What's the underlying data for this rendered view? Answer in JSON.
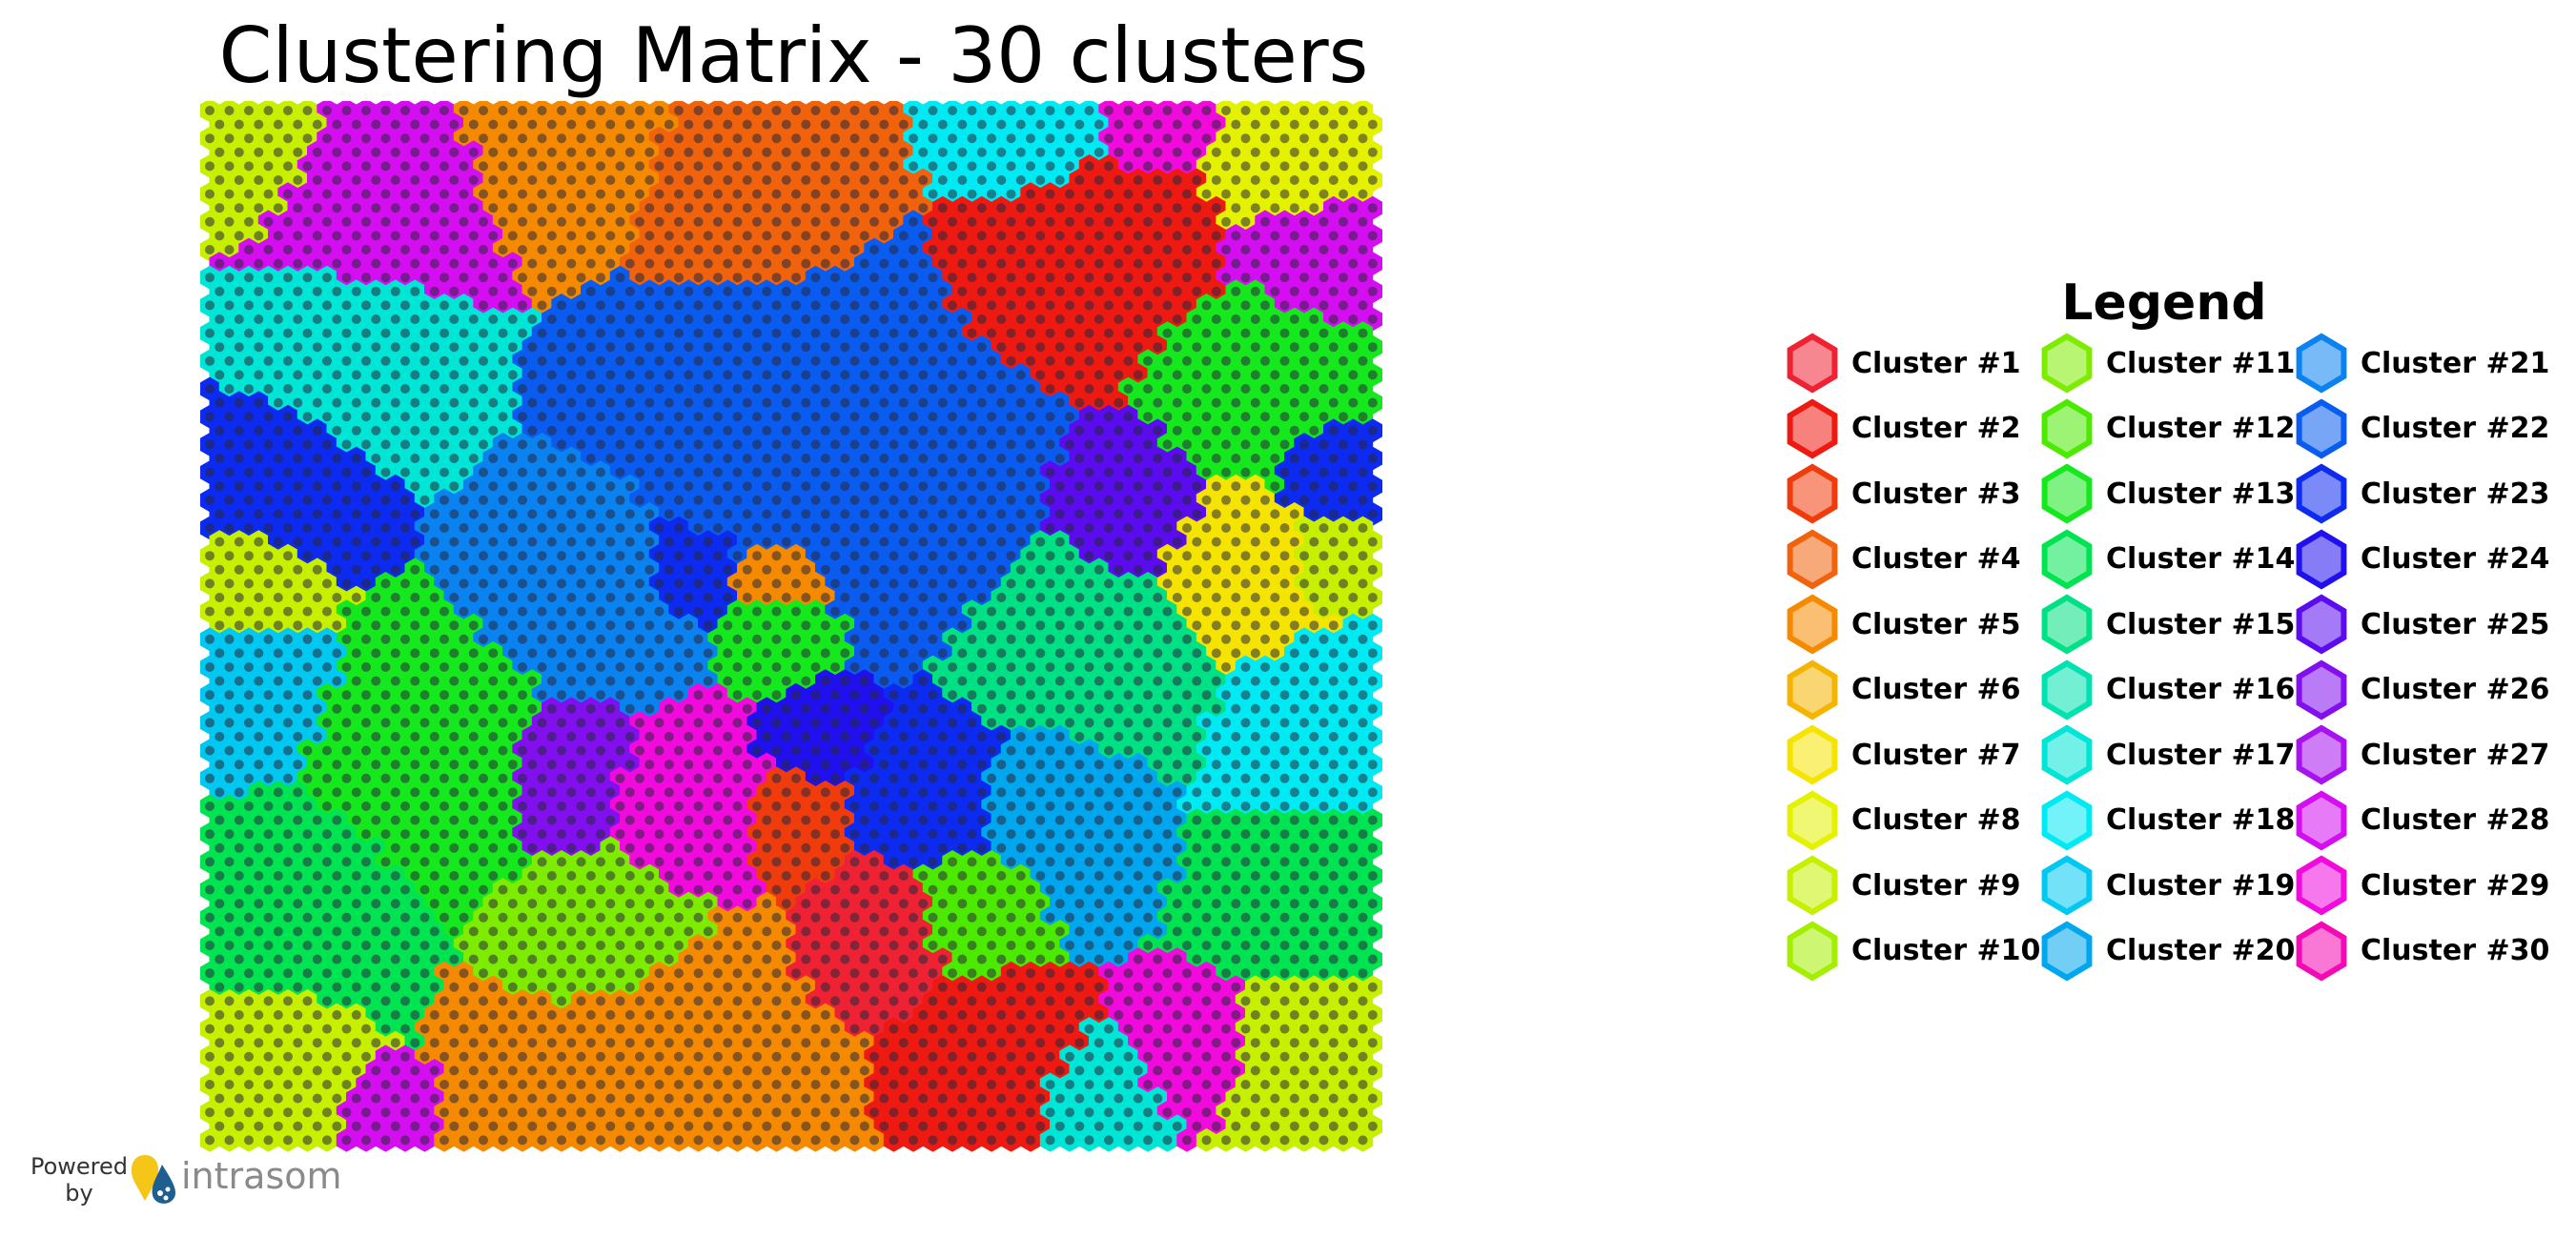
{
  "page": {
    "title": "Clustering Matrix - 30 clusters",
    "legend_title": "Legend",
    "powered_by": "Powered by",
    "brand": "intrasom"
  },
  "icons": {
    "logo": "intrasom-logo-icon",
    "legend_marker": "hexagon-icon"
  },
  "chart_data": {
    "type": "heatmap",
    "grid": "hexagonal",
    "title": "Clustering Matrix - 30 clusters",
    "cluster_count": 30,
    "clusters": [
      {
        "id": 1,
        "name": "Cluster #1",
        "color": "#ee2233"
      },
      {
        "id": 2,
        "name": "Cluster #2",
        "color": "#ee1a12"
      },
      {
        "id": 3,
        "name": "Cluster #3",
        "color": "#f03c0c"
      },
      {
        "id": 4,
        "name": "Cluster #4",
        "color": "#f0620c"
      },
      {
        "id": 5,
        "name": "Cluster #5",
        "color": "#f58a00"
      },
      {
        "id": 6,
        "name": "Cluster #6",
        "color": "#f5b400"
      },
      {
        "id": 7,
        "name": "Cluster #7",
        "color": "#f5e400"
      },
      {
        "id": 8,
        "name": "Cluster #8",
        "color": "#e4f200"
      },
      {
        "id": 9,
        "name": "Cluster #9",
        "color": "#c6f000"
      },
      {
        "id": 10,
        "name": "Cluster #10",
        "color": "#a4ee00"
      },
      {
        "id": 11,
        "name": "Cluster #11",
        "color": "#7eec00"
      },
      {
        "id": 12,
        "name": "Cluster #12",
        "color": "#4cea00"
      },
      {
        "id": 13,
        "name": "Cluster #13",
        "color": "#16e81e"
      },
      {
        "id": 14,
        "name": "Cluster #14",
        "color": "#00e452"
      },
      {
        "id": 15,
        "name": "Cluster #15",
        "color": "#00e084"
      },
      {
        "id": 16,
        "name": "Cluster #16",
        "color": "#00e2b0"
      },
      {
        "id": 17,
        "name": "Cluster #17",
        "color": "#00e6d6"
      },
      {
        "id": 18,
        "name": "Cluster #18",
        "color": "#00eaf4"
      },
      {
        "id": 19,
        "name": "Cluster #19",
        "color": "#00c8f0"
      },
      {
        "id": 20,
        "name": "Cluster #20",
        "color": "#00a6ee"
      },
      {
        "id": 21,
        "name": "Cluster #21",
        "color": "#0a82f0"
      },
      {
        "id": 22,
        "name": "Cluster #22",
        "color": "#0a5cf0"
      },
      {
        "id": 23,
        "name": "Cluster #23",
        "color": "#0c2af0"
      },
      {
        "id": 24,
        "name": "Cluster #24",
        "color": "#2010ee"
      },
      {
        "id": 25,
        "name": "Cluster #25",
        "color": "#5a0cee"
      },
      {
        "id": 26,
        "name": "Cluster #26",
        "color": "#8210ee"
      },
      {
        "id": 27,
        "name": "Cluster #27",
        "color": "#a812ee"
      },
      {
        "id": 28,
        "name": "Cluster #28",
        "color": "#d40ef0"
      },
      {
        "id": 29,
        "name": "Cluster #29",
        "color": "#f00adc"
      },
      {
        "id": 30,
        "name": "Cluster #30",
        "color": "#f40ab4"
      }
    ],
    "map_regions": [
      {
        "cluster": 9,
        "c": 2,
        "r": 3,
        "weight": 1.0
      },
      {
        "cluster": 28,
        "c": 8,
        "r": 7,
        "weight": 1.4
      },
      {
        "cluster": 5,
        "c": 18,
        "r": 3,
        "weight": 1.2
      },
      {
        "cluster": 4,
        "c": 27,
        "r": 7,
        "weight": 1.3
      },
      {
        "cluster": 18,
        "c": 42,
        "r": 2,
        "weight": 0.9
      },
      {
        "cluster": 29,
        "c": 48,
        "r": 1,
        "weight": 0.7
      },
      {
        "cluster": 2,
        "c": 45,
        "r": 10,
        "weight": 1.3
      },
      {
        "cluster": 8,
        "c": 55,
        "r": 4,
        "weight": 0.9
      },
      {
        "cluster": 28,
        "c": 56,
        "r": 10,
        "weight": 0.8
      },
      {
        "cluster": 17,
        "c": 7,
        "r": 17,
        "weight": 1.3
      },
      {
        "cluster": 13,
        "c": 53,
        "r": 20,
        "weight": 1.1
      },
      {
        "cluster": 22,
        "c": 28,
        "r": 21,
        "weight": 1.8
      },
      {
        "cluster": 22,
        "c": 35,
        "r": 27,
        "weight": 1.5
      },
      {
        "cluster": 23,
        "c": 3,
        "r": 27,
        "weight": 1.1
      },
      {
        "cluster": 23,
        "c": 57,
        "r": 26,
        "weight": 0.6
      },
      {
        "cluster": 25,
        "c": 47,
        "r": 29,
        "weight": 0.9
      },
      {
        "cluster": 9,
        "c": 2,
        "r": 34,
        "weight": 0.8
      },
      {
        "cluster": 7,
        "c": 52,
        "r": 33,
        "weight": 1.0
      },
      {
        "cluster": 9,
        "c": 57,
        "r": 32,
        "weight": 0.6
      },
      {
        "cluster": 21,
        "c": 19,
        "r": 34,
        "weight": 1.2
      },
      {
        "cluster": 23,
        "c": 24,
        "r": 33,
        "weight": 0.6
      },
      {
        "cluster": 5,
        "c": 29,
        "r": 34,
        "weight": 0.5
      },
      {
        "cluster": 13,
        "c": 29,
        "r": 38,
        "weight": 0.6
      },
      {
        "cluster": 19,
        "c": 2,
        "r": 42,
        "weight": 0.9
      },
      {
        "cluster": 13,
        "c": 11,
        "r": 46,
        "weight": 1.3
      },
      {
        "cluster": 15,
        "c": 45,
        "r": 39,
        "weight": 1.3
      },
      {
        "cluster": 18,
        "c": 56,
        "r": 45,
        "weight": 1.0
      },
      {
        "cluster": 26,
        "c": 18,
        "r": 48,
        "weight": 0.8
      },
      {
        "cluster": 29,
        "c": 24,
        "r": 50,
        "weight": 0.9
      },
      {
        "cluster": 24,
        "c": 31,
        "r": 45,
        "weight": 0.6
      },
      {
        "cluster": 3,
        "c": 30,
        "r": 51,
        "weight": 0.6
      },
      {
        "cluster": 23,
        "c": 37,
        "r": 49,
        "weight": 0.9
      },
      {
        "cluster": 20,
        "c": 43,
        "r": 50,
        "weight": 1.0
      },
      {
        "cluster": 14,
        "c": 4,
        "r": 57,
        "weight": 1.1
      },
      {
        "cluster": 11,
        "c": 20,
        "r": 60,
        "weight": 1.0
      },
      {
        "cluster": 1,
        "c": 34,
        "r": 59,
        "weight": 0.7
      },
      {
        "cluster": 12,
        "c": 39,
        "r": 57,
        "weight": 0.7
      },
      {
        "cluster": 14,
        "c": 56,
        "r": 56,
        "weight": 1.0
      },
      {
        "cluster": 9,
        "c": 3,
        "r": 68,
        "weight": 0.8
      },
      {
        "cluster": 5,
        "c": 22,
        "r": 68,
        "weight": 1.4
      },
      {
        "cluster": 28,
        "c": 9,
        "r": 72,
        "weight": 0.4
      },
      {
        "cluster": 2,
        "c": 40,
        "r": 68,
        "weight": 0.8
      },
      {
        "cluster": 17,
        "c": 45,
        "r": 71,
        "weight": 0.6
      },
      {
        "cluster": 29,
        "c": 50,
        "r": 67,
        "weight": 0.6
      },
      {
        "cluster": 9,
        "c": 56,
        "r": 68,
        "weight": 0.8
      }
    ]
  }
}
